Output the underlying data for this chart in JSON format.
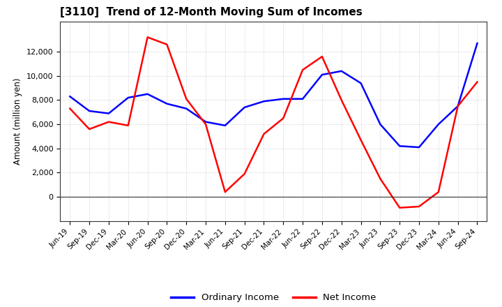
{
  "title": "[3110]  Trend of 12-Month Moving Sum of Incomes",
  "ylabel": "Amount (million yen)",
  "x_labels": [
    "Jun-19",
    "Sep-19",
    "Dec-19",
    "Mar-20",
    "Jun-20",
    "Sep-20",
    "Dec-20",
    "Mar-21",
    "Jun-21",
    "Sep-21",
    "Dec-21",
    "Mar-22",
    "Jun-22",
    "Sep-22",
    "Dec-22",
    "Mar-23",
    "Jun-23",
    "Sep-23",
    "Dec-23",
    "Mar-24",
    "Jun-24",
    "Sep-24"
  ],
  "ordinary_income": [
    8300,
    7100,
    6900,
    8200,
    8500,
    7700,
    7300,
    6200,
    5900,
    7400,
    7900,
    8100,
    8100,
    10100,
    10400,
    9400,
    6000,
    4200,
    4100,
    6000,
    7500,
    12700
  ],
  "net_income": [
    7300,
    5600,
    6200,
    5900,
    13200,
    12600,
    8100,
    6000,
    400,
    1900,
    5200,
    6500,
    10500,
    11600,
    8000,
    4700,
    1500,
    -900,
    -800,
    400,
    7500,
    9500
  ],
  "ordinary_color": "#0000FF",
  "net_color": "#FF0000",
  "ylim_min": -2000,
  "ylim_max": 14500,
  "yticks": [
    0,
    2000,
    4000,
    6000,
    8000,
    10000,
    12000
  ],
  "background_color": "#FFFFFF",
  "grid_color": "#888888",
  "line_width": 1.8,
  "title_fontsize": 11,
  "legend_labels": [
    "Ordinary Income",
    "Net Income"
  ]
}
